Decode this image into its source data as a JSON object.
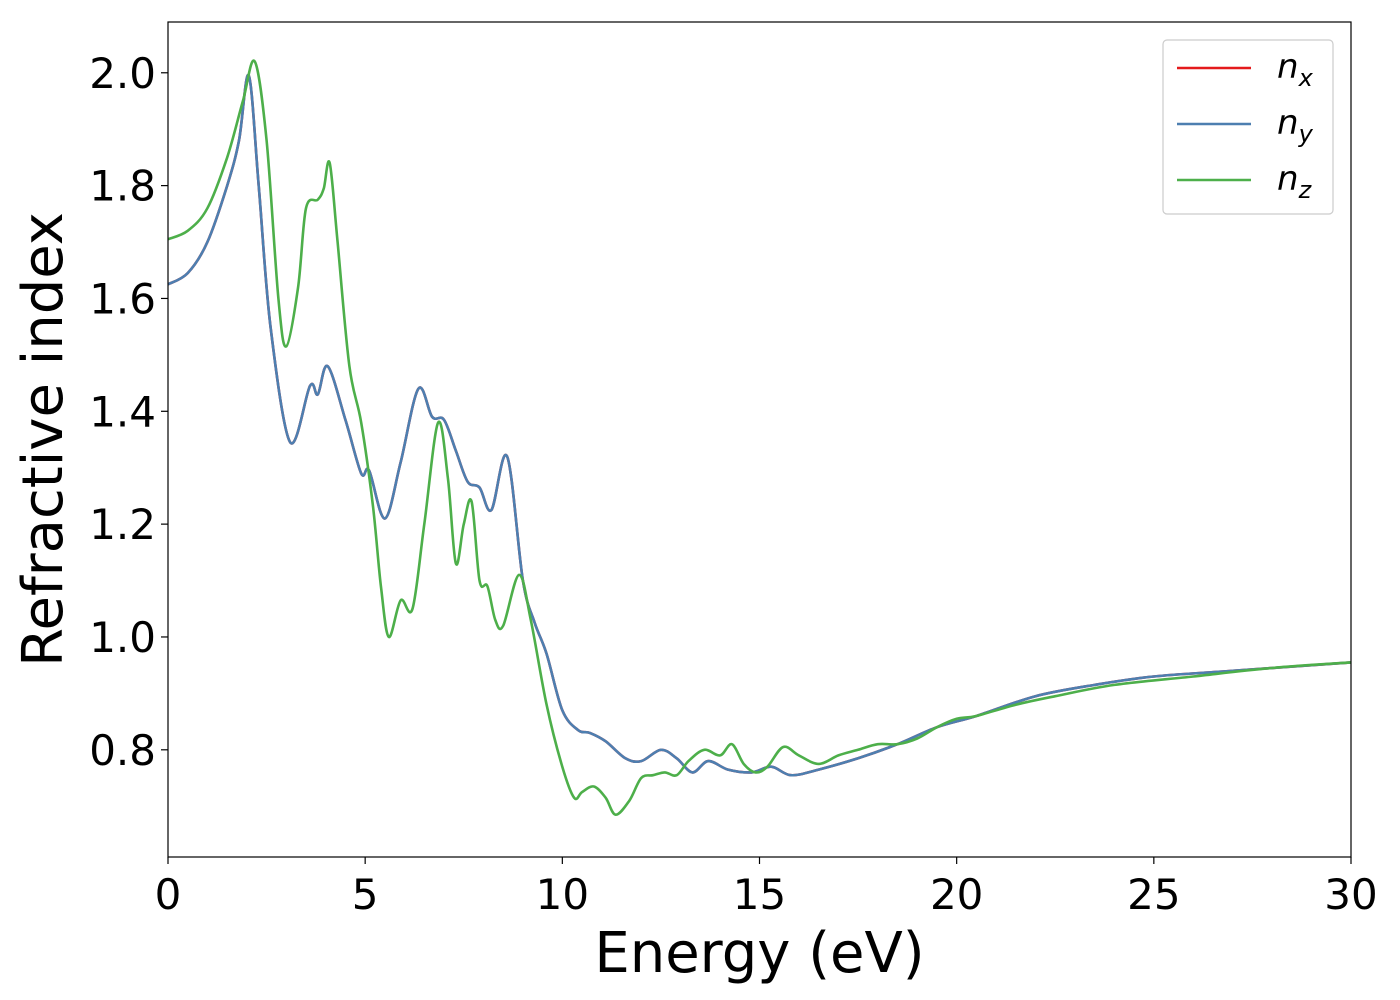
{
  "chart_data": {
    "type": "line",
    "title": "",
    "xlabel": "Energy (eV)",
    "ylabel": "Refractive index",
    "xlim": [
      0,
      30
    ],
    "ylim": [
      0.61,
      2.09
    ],
    "grid": false,
    "legend_position": "top-right",
    "xticks": [
      0,
      5,
      10,
      15,
      20,
      25,
      30
    ],
    "xtick_labels": [
      "0",
      "5",
      "10",
      "15",
      "20",
      "25",
      "30"
    ],
    "yticks": [
      0.8,
      1.0,
      1.2,
      1.4,
      1.6,
      1.8,
      2.0
    ],
    "ytick_labels": [
      "0.8",
      "1.0",
      "1.2",
      "1.4",
      "1.6",
      "1.8",
      "2.0"
    ],
    "series": [
      {
        "name": "n_x",
        "legend_base": "n",
        "legend_sub": "x",
        "color": "#e41a1c",
        "x": [
          0,
          0.5,
          1.0,
          1.5,
          1.8,
          2.05,
          2.3,
          2.6,
          3.1,
          3.6,
          3.8,
          4.05,
          4.5,
          4.9,
          5.1,
          5.5,
          5.9,
          6.35,
          6.7,
          7.0,
          7.3,
          7.6,
          7.9,
          8.2,
          8.6,
          9.0,
          9.3,
          9.6,
          10.0,
          10.4,
          10.7,
          11.1,
          11.6,
          12.0,
          12.5,
          12.9,
          13.3,
          13.7,
          14.2,
          14.8,
          15.3,
          15.8,
          16.5,
          17.5,
          18.5,
          19.5,
          20.5,
          22.0,
          23.5,
          25.0,
          27.0,
          30.0
        ],
        "y": [
          1.625,
          1.645,
          1.7,
          1.8,
          1.88,
          1.995,
          1.8,
          1.55,
          1.345,
          1.445,
          1.43,
          1.48,
          1.385,
          1.29,
          1.295,
          1.21,
          1.31,
          1.44,
          1.39,
          1.385,
          1.33,
          1.275,
          1.265,
          1.225,
          1.32,
          1.1,
          1.025,
          0.97,
          0.87,
          0.835,
          0.83,
          0.815,
          0.785,
          0.78,
          0.8,
          0.785,
          0.76,
          0.78,
          0.765,
          0.76,
          0.77,
          0.755,
          0.765,
          0.785,
          0.81,
          0.84,
          0.86,
          0.895,
          0.915,
          0.93,
          0.94,
          0.955
        ]
      },
      {
        "name": "n_y",
        "legend_base": "n",
        "legend_sub": "y",
        "color": "#4d7fb0",
        "x": [
          0,
          0.5,
          1.0,
          1.5,
          1.8,
          2.05,
          2.3,
          2.6,
          3.1,
          3.6,
          3.8,
          4.05,
          4.5,
          4.9,
          5.1,
          5.5,
          5.9,
          6.35,
          6.7,
          7.0,
          7.3,
          7.6,
          7.9,
          8.2,
          8.6,
          9.0,
          9.3,
          9.6,
          10.0,
          10.4,
          10.7,
          11.1,
          11.6,
          12.0,
          12.5,
          12.9,
          13.3,
          13.7,
          14.2,
          14.8,
          15.3,
          15.8,
          16.5,
          17.5,
          18.5,
          19.5,
          20.5,
          22.0,
          23.5,
          25.0,
          27.0,
          30.0
        ],
        "y": [
          1.625,
          1.645,
          1.7,
          1.8,
          1.88,
          1.995,
          1.8,
          1.55,
          1.345,
          1.445,
          1.43,
          1.48,
          1.385,
          1.29,
          1.295,
          1.21,
          1.31,
          1.44,
          1.39,
          1.385,
          1.33,
          1.275,
          1.265,
          1.225,
          1.32,
          1.1,
          1.025,
          0.97,
          0.87,
          0.835,
          0.83,
          0.815,
          0.785,
          0.78,
          0.8,
          0.785,
          0.76,
          0.78,
          0.765,
          0.76,
          0.77,
          0.755,
          0.765,
          0.785,
          0.81,
          0.84,
          0.86,
          0.895,
          0.915,
          0.93,
          0.94,
          0.955
        ]
      },
      {
        "name": "n_z",
        "legend_base": "n",
        "legend_sub": "z",
        "color": "#4daf4a",
        "x": [
          0,
          0.5,
          1.0,
          1.5,
          1.9,
          2.2,
          2.5,
          2.8,
          3.0,
          3.3,
          3.5,
          3.8,
          3.95,
          4.1,
          4.3,
          4.6,
          4.9,
          5.2,
          5.4,
          5.6,
          5.9,
          6.2,
          6.5,
          6.85,
          7.1,
          7.3,
          7.5,
          7.7,
          7.9,
          8.1,
          8.3,
          8.5,
          8.9,
          9.2,
          9.6,
          10.0,
          10.3,
          10.5,
          10.8,
          11.1,
          11.35,
          11.7,
          12.0,
          12.3,
          12.6,
          12.9,
          13.2,
          13.6,
          14.0,
          14.3,
          14.6,
          14.9,
          15.2,
          15.6,
          16.0,
          16.5,
          17.0,
          17.5,
          18.0,
          18.5,
          19.0,
          19.5,
          20.0,
          20.5,
          21.5,
          22.5,
          24.0,
          26.0,
          28.0,
          30.0
        ],
        "y": [
          1.705,
          1.72,
          1.76,
          1.85,
          1.95,
          2.02,
          1.88,
          1.6,
          1.515,
          1.62,
          1.76,
          1.775,
          1.795,
          1.84,
          1.7,
          1.48,
          1.38,
          1.23,
          1.09,
          1.0,
          1.065,
          1.05,
          1.2,
          1.38,
          1.28,
          1.13,
          1.2,
          1.24,
          1.1,
          1.09,
          1.03,
          1.02,
          1.11,
          1.03,
          0.88,
          0.77,
          0.715,
          0.725,
          0.735,
          0.715,
          0.685,
          0.71,
          0.75,
          0.755,
          0.76,
          0.755,
          0.78,
          0.8,
          0.79,
          0.81,
          0.775,
          0.76,
          0.77,
          0.805,
          0.79,
          0.775,
          0.79,
          0.8,
          0.81,
          0.81,
          0.82,
          0.84,
          0.855,
          0.86,
          0.88,
          0.895,
          0.915,
          0.93,
          0.945,
          0.955
        ]
      }
    ]
  }
}
